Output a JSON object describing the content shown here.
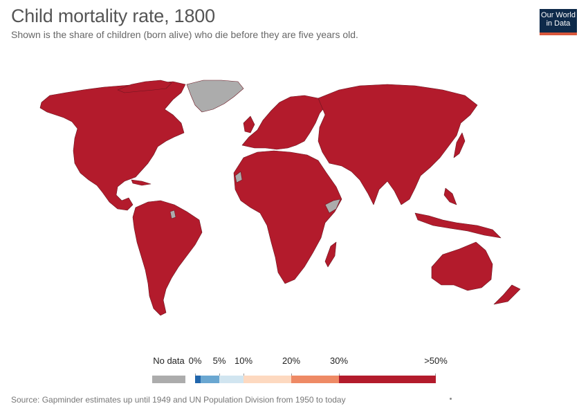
{
  "header": {
    "title": "Child mortality rate, 1800",
    "subtitle": "Shown is the share of children (born alive) who die before they are five years old."
  },
  "logo": {
    "line1": "Our World",
    "line2": "in Data"
  },
  "map": {
    "colors": {
      "high": "#b31b2c",
      "no_data": "#acacac",
      "border": "#6b1520",
      "water": "#ffffff"
    },
    "regions": [
      {
        "name": "North America",
        "category": ">50%"
      },
      {
        "name": "Greenland",
        "category": "No data"
      },
      {
        "name": "South America",
        "category": ">50%"
      },
      {
        "name": "Europe",
        "category": ">50%"
      },
      {
        "name": "Africa",
        "category": ">50%"
      },
      {
        "name": "Asia",
        "category": ">50%"
      },
      {
        "name": "Australia",
        "category": ">50%"
      },
      {
        "name": "New Zealand",
        "category": ">50%"
      },
      {
        "name": "Somalia",
        "category": "No data"
      },
      {
        "name": "Western Sahara",
        "category": "No data"
      },
      {
        "name": "French Guiana",
        "category": "No data"
      }
    ]
  },
  "legend": {
    "no_data_label": "No data",
    "no_data_color": "#acacac",
    "bins": [
      {
        "label": "0%",
        "color": "#2166ac"
      },
      {
        "label": "5%",
        "color": "#6aa7d1"
      },
      {
        "label": "10%",
        "color": "#d1e5f0"
      },
      {
        "label": "20%",
        "color": "#fdd9c0"
      },
      {
        "label": "30%",
        "color": "#ee8a65"
      },
      {
        "label": ">50%",
        "color": "#b31b2c"
      }
    ]
  },
  "footer": {
    "source": "Source: Gapminder estimates up until 1949 and UN Population Division from 1950 to today"
  }
}
